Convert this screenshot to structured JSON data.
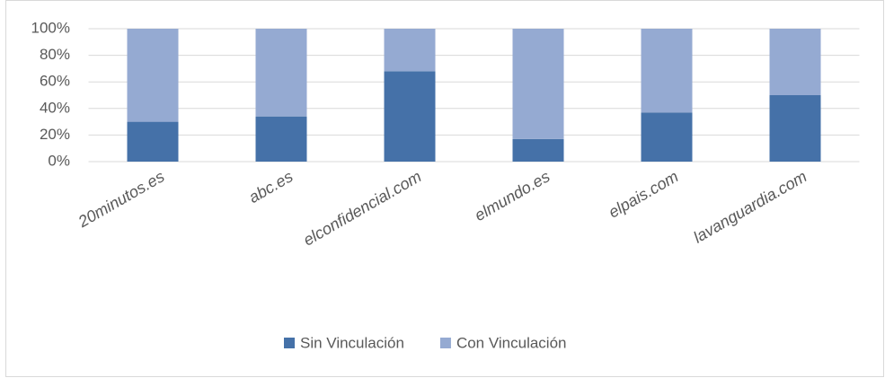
{
  "chart_data": {
    "type": "bar",
    "stacked": true,
    "categories": [
      "20minutos.es",
      "abc.es",
      "elconfidencial.com",
      "elmundo.es",
      "elpais.com",
      "lavanguardia.com"
    ],
    "series": [
      {
        "name": "Sin Vinculación",
        "color": "#4571a8",
        "values": [
          30,
          34,
          68,
          17,
          37,
          50
        ]
      },
      {
        "name": "Con Vinculación",
        "color": "#95aad2",
        "values": [
          70,
          66,
          32,
          83,
          63,
          50
        ]
      }
    ],
    "ylim": [
      0,
      100
    ],
    "yticks": [
      {
        "value": 0,
        "label": "0%"
      },
      {
        "value": 20,
        "label": "20%"
      },
      {
        "value": 40,
        "label": "40%"
      },
      {
        "value": 60,
        "label": "60%"
      },
      {
        "value": 80,
        "label": "80%"
      },
      {
        "value": 100,
        "label": "100%"
      }
    ],
    "grid": true,
    "legend": "bottom"
  }
}
